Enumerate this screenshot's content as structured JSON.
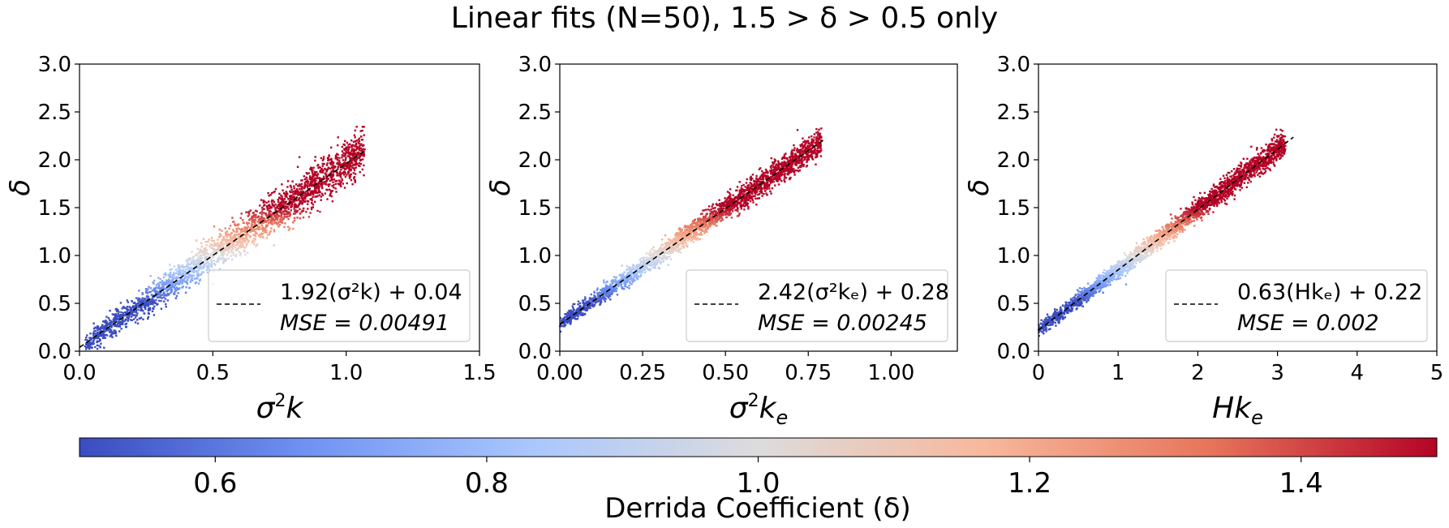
{
  "figure": {
    "title": "Linear fits (N=50), 1.5 > δ > 0.5 only"
  },
  "colorbar": {
    "label": "Derrida Coefficient (δ)",
    "range": [
      0.5,
      1.5
    ],
    "ticks": [
      "0.6",
      "0.8",
      "1.0",
      "1.2",
      "1.4"
    ],
    "colormap": "coolwarm",
    "colors": [
      "#3b4cc0",
      "#6f92f3",
      "#aac7fd",
      "#dddcdc",
      "#f7b89c",
      "#e7745b",
      "#b40426"
    ]
  },
  "chart_data": [
    {
      "type": "scatter",
      "xlabel_main": "σ",
      "xlabel_sup": "2",
      "xlabel_tail": "k",
      "xlabel_sub": "",
      "ylabel": "δ",
      "xlim": [
        0,
        1.5
      ],
      "ylim": [
        0,
        3.0
      ],
      "xticks": [
        "0.0",
        "0.5",
        "1.0",
        "1.5"
      ],
      "yticks": [
        "0.0",
        "0.5",
        "1.0",
        "1.5",
        "2.0",
        "2.5",
        "3.0"
      ],
      "fit": {
        "slope": 1.92,
        "intercept": 0.04,
        "x_range": [
          0.0,
          1.07
        ]
      },
      "legend": {
        "equation": "1.92(σ²k) + 0.04",
        "mse": "MSE = 0.00491",
        "position": "lower right"
      },
      "points": {
        "x_range": [
          0.02,
          1.07
        ],
        "noise": 0.1,
        "extra_curve": 0.0
      }
    },
    {
      "type": "scatter",
      "xlabel_main": "σ",
      "xlabel_sup": "2",
      "xlabel_tail": "k",
      "xlabel_sub": "e",
      "ylabel": "δ",
      "xlim": [
        0,
        1.2
      ],
      "ylim": [
        0,
        3.0
      ],
      "xticks": [
        "0.00",
        "0.25",
        "0.50",
        "0.75",
        "1.00"
      ],
      "yticks": [
        "0.0",
        "0.5",
        "1.0",
        "1.5",
        "2.0",
        "2.5",
        "3.0"
      ],
      "fit": {
        "slope": 2.42,
        "intercept": 0.28,
        "x_range": [
          0.0,
          0.8
        ]
      },
      "legend": {
        "equation": "2.42(σ²kₑ) + 0.28",
        "mse": "MSE = 0.00245",
        "position": "lower right"
      },
      "points": {
        "x_range": [
          0.0,
          0.79
        ],
        "noise": 0.06,
        "extra_curve": -0.25
      }
    },
    {
      "type": "scatter",
      "xlabel_main": "Hk",
      "xlabel_sup": "",
      "xlabel_tail": "",
      "xlabel_sub": "e",
      "ylabel": "δ",
      "xlim": [
        0,
        5
      ],
      "ylim": [
        0,
        3.0
      ],
      "xticks": [
        "0",
        "1",
        "2",
        "3",
        "4",
        "5"
      ],
      "yticks": [
        "0.0",
        "0.5",
        "1.0",
        "1.5",
        "2.0",
        "2.5",
        "3.0"
      ],
      "fit": {
        "slope": 0.63,
        "intercept": 0.22,
        "x_range": [
          0.0,
          3.2
        ]
      },
      "legend": {
        "equation": "0.63(Hkₑ) + 0.22",
        "mse": "MSE = 0.002",
        "position": "lower right"
      },
      "points": {
        "x_range": [
          0.0,
          3.1
        ],
        "noise": 0.055,
        "extra_curve": -0.22
      }
    }
  ]
}
